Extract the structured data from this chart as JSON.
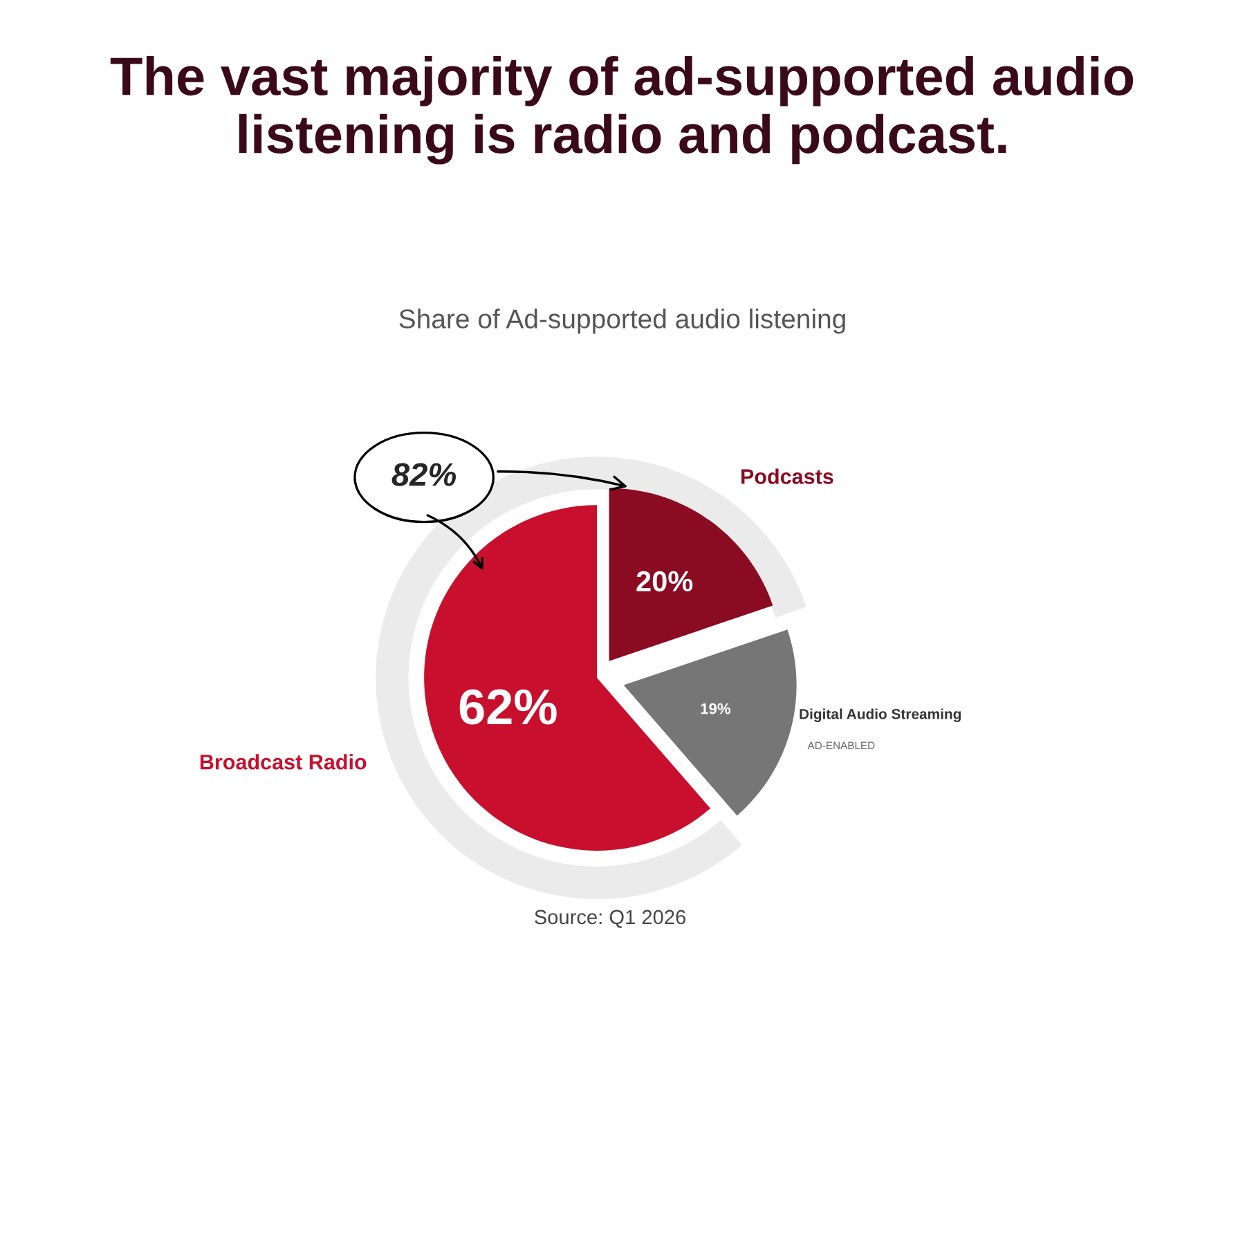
{
  "chart_data": {
    "type": "pie",
    "title": "The vast majority of ad-supported audio listening is radio and podcast.",
    "subtitle": "Share of Ad-supported audio listening",
    "categories": [
      "Podcasts",
      "Digital Audio Streaming",
      "Broadcast Radio"
    ],
    "values": [
      20,
      19,
      62
    ],
    "value_labels": [
      "20%",
      "19%",
      "62%"
    ],
    "colors": [
      "#8a0b22",
      "#767676",
      "#c8102e"
    ],
    "annotations": [
      "82%",
      "AD-ENABLED",
      "Source: Q1 2026"
    ]
  }
}
